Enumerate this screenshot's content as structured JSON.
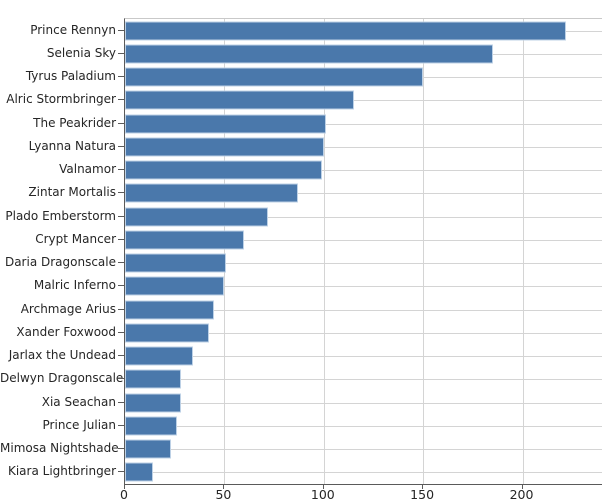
{
  "chart_data": {
    "type": "bar",
    "orientation": "horizontal",
    "title": "",
    "xlabel": "",
    "ylabel": "",
    "categories": [
      "Prince Rennyn",
      "Selenia Sky",
      "Tyrus Paladium",
      "Alric Stormbringer",
      "The Peakrider",
      "Lyanna Natura",
      "Valnamor",
      "Zintar Mortalis",
      "Plado Emberstorm",
      "Crypt Mancer",
      "Daria Dragonscale",
      "Malric Inferno",
      "Archmage Arius",
      "Xander Foxwood",
      "Jarlax the Undead",
      "Delwyn Dragonscale",
      "Xia Seachan",
      "Prince Julian",
      "Mimosa Nightshade",
      "Kiara Lightbringer"
    ],
    "values": [
      222,
      185,
      150,
      115,
      101,
      100,
      99,
      87,
      72,
      60,
      51,
      50,
      45,
      42,
      34,
      28,
      28,
      26,
      23,
      14
    ],
    "xticks": [
      0,
      50,
      100,
      150,
      200
    ],
    "xlim": [
      0,
      240
    ],
    "grid": true,
    "legend": null,
    "colors": {
      "bar_fill": "#4a78ab",
      "bar_edge": "#bdd1e6",
      "gridline": "#d4d4d4",
      "spine": "#5a5a5a",
      "text": "#262626"
    }
  }
}
